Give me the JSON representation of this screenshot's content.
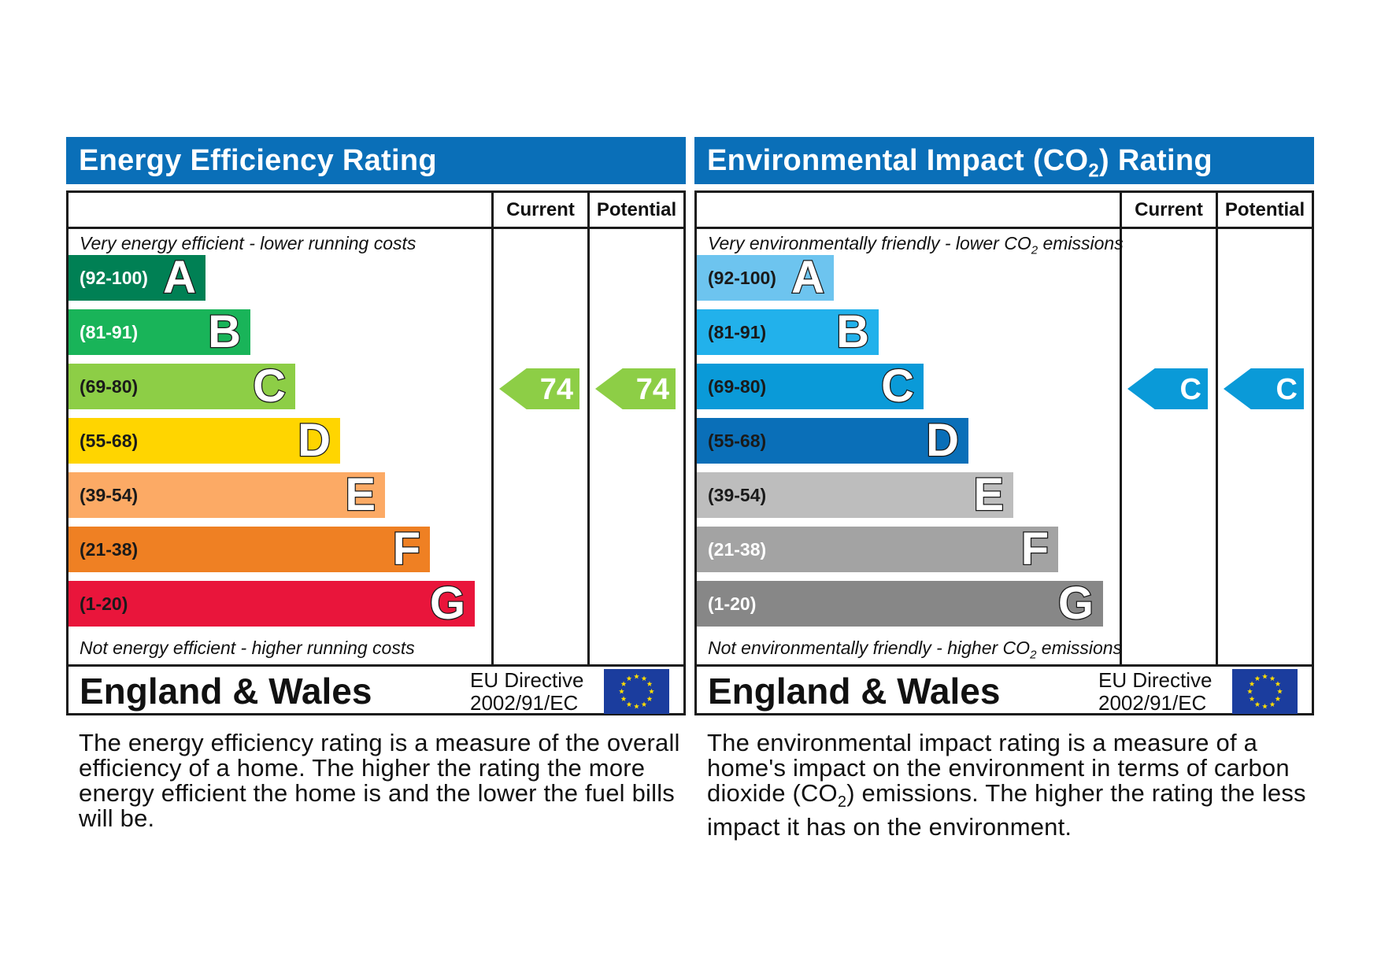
{
  "energy": {
    "title": "Energy Efficiency Rating",
    "col_current": "Current",
    "col_potential": "Potential",
    "top_note": "Very energy efficient - lower running costs",
    "bottom_note": "Not energy efficient - higher running costs",
    "bands": [
      {
        "range": "(92-100)",
        "letter": "A",
        "color": "#008054",
        "text_color": "#ffffff"
      },
      {
        "range": "(81-91)",
        "letter": "B",
        "color": "#19b459",
        "text_color": "#ffffff"
      },
      {
        "range": "(69-80)",
        "letter": "C",
        "color": "#8dce46",
        "text_color": "#1a1a1a"
      },
      {
        "range": "(55-68)",
        "letter": "D",
        "color": "#ffd500",
        "text_color": "#1a1a1a"
      },
      {
        "range": "(39-54)",
        "letter": "E",
        "color": "#fcaa65",
        "text_color": "#1a1a1a"
      },
      {
        "range": "(21-38)",
        "letter": "F",
        "color": "#ef8023",
        "text_color": "#1a1a1a"
      },
      {
        "range": "(1-20)",
        "letter": "G",
        "color": "#e9153b",
        "text_color": "#1a1a1a"
      }
    ],
    "current": {
      "value": "74",
      "band": "C",
      "color": "#8dce46"
    },
    "potential": {
      "value": "74",
      "band": "C",
      "color": "#8dce46"
    },
    "region": "England & Wales",
    "directive_line1": "EU Directive",
    "directive_line2": "2002/91/EC",
    "description": "The energy efficiency rating is a measure of the overall efficiency of a home. The higher the rating the more energy efficient the home is and the lower the fuel bills will be."
  },
  "environment": {
    "title_before": "Environmental Impact (CO",
    "title_sub": "2",
    "title_after": ") Rating",
    "col_current": "Current",
    "col_potential": "Potential",
    "top_note_before": "Very environmentally friendly - lower CO",
    "top_note_sub": "2",
    "top_note_after": " emissions",
    "bottom_note_before": "Not environmentally friendly - higher CO",
    "bottom_note_sub": "2",
    "bottom_note_after": " emissions",
    "bands": [
      {
        "range": "(92-100)",
        "letter": "A",
        "color": "#6dc4ef",
        "text_color": "#1a1a1a"
      },
      {
        "range": "(81-91)",
        "letter": "B",
        "color": "#22b1eb",
        "text_color": "#1a1a1a"
      },
      {
        "range": "(69-80)",
        "letter": "C",
        "color": "#0a9ad8",
        "text_color": "#1a1a1a"
      },
      {
        "range": "(55-68)",
        "letter": "D",
        "color": "#0a6fb8",
        "text_color": "#1a1a1a"
      },
      {
        "range": "(39-54)",
        "letter": "E",
        "color": "#bdbdbd",
        "text_color": "#1a1a1a"
      },
      {
        "range": "(21-38)",
        "letter": "F",
        "color": "#a3a3a3",
        "text_color": "#ffffff"
      },
      {
        "range": "(1-20)",
        "letter": "G",
        "color": "#878787",
        "text_color": "#ffffff"
      }
    ],
    "current": {
      "value": "C",
      "band": "C",
      "color": "#0a9ad8"
    },
    "potential": {
      "value": "C",
      "band": "C",
      "color": "#0a9ad8"
    },
    "region": "England & Wales",
    "directive_line1": "EU Directive",
    "directive_line2": "2002/91/EC",
    "desc_line1": "The environmental impact rating is a measure of a home's impact on the environment in terms of carbon dioxide (CO",
    "desc_sub": "2",
    "desc_line2": ") emissions. The higher the rating the less impact it has on the environment."
  },
  "flag_icon": "eu-flag-icon"
}
